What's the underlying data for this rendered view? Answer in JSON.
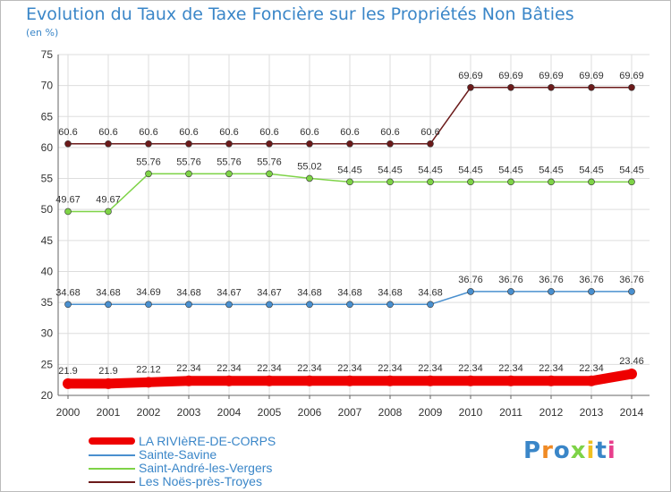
{
  "header": {
    "title": "Evolution du Taux de Taxe Foncière sur les Propriétés Non Bâties",
    "unit": "(en %)"
  },
  "brand": {
    "name": "Proxiti"
  },
  "chart_data": {
    "type": "line",
    "title": "Evolution du Taux de Taxe Foncière sur les Propriétés Non Bâties",
    "ylabel": "(en %)",
    "xlabel": "",
    "ylim": [
      20,
      75
    ],
    "yticks": [
      20,
      25,
      30,
      35,
      40,
      45,
      50,
      55,
      60,
      65,
      70,
      75
    ],
    "grid": true,
    "legend_position": "bottom-left",
    "x": [
      "2000",
      "2001",
      "2002",
      "2003",
      "2004",
      "2005",
      "2006",
      "2007",
      "2008",
      "2009",
      "2010",
      "2011",
      "2012",
      "2013",
      "2014"
    ],
    "series": [
      {
        "name": "LA RIVIèRE-DE-CORPS",
        "color": "#ee0000",
        "values": [
          21.9,
          21.9,
          22.12,
          22.34,
          22.34,
          22.34,
          22.34,
          22.34,
          22.34,
          22.34,
          22.34,
          22.34,
          22.34,
          22.34,
          23.46
        ],
        "labels": [
          "21.9",
          "21.9",
          "22.12",
          "22.34",
          "22.34",
          "22.34",
          "22.34",
          "22.34",
          "22.34",
          "22.34",
          "22.34",
          "22.34",
          "22.34",
          "22.34",
          "23.46"
        ]
      },
      {
        "name": "Sainte-Savine",
        "color": "#4a90cf",
        "values": [
          34.68,
          34.68,
          34.69,
          34.68,
          34.67,
          34.67,
          34.68,
          34.68,
          34.68,
          34.68,
          36.76,
          36.76,
          36.76,
          36.76,
          36.76
        ],
        "labels": [
          "34.68",
          "34.68",
          "34.69",
          "34.68",
          "34.67",
          "34.67",
          "34.68",
          "34.68",
          "34.68",
          "34.68",
          "36.76",
          "36.76",
          "36.76",
          "36.76",
          "36.76"
        ]
      },
      {
        "name": "Saint-André-les-Vergers",
        "color": "#7ed347",
        "values": [
          49.67,
          49.67,
          55.76,
          55.76,
          55.76,
          55.76,
          55.02,
          54.45,
          54.45,
          54.45,
          54.45,
          54.45,
          54.45,
          54.45,
          54.45
        ],
        "labels": [
          "49.67",
          "49.67",
          "55.76",
          "55.76",
          "55.76",
          "55.76",
          "55.02",
          "54.45",
          "54.45",
          "54.45",
          "54.45",
          "54.45",
          "54.45",
          "54.45",
          "54.45"
        ]
      },
      {
        "name": "Les Noës-près-Troyes",
        "color": "#6b1a1a",
        "values": [
          60.6,
          60.6,
          60.6,
          60.6,
          60.6,
          60.6,
          60.6,
          60.6,
          60.6,
          60.6,
          69.69,
          69.69,
          69.69,
          69.69,
          69.69
        ],
        "labels": [
          "60.6",
          "60.6",
          "60.6",
          "60.6",
          "60.6",
          "60.6",
          "60.6",
          "60.6",
          "60.6",
          "60.6",
          "69.69",
          "69.69",
          "69.69",
          "69.69",
          "69.69"
        ]
      }
    ]
  }
}
